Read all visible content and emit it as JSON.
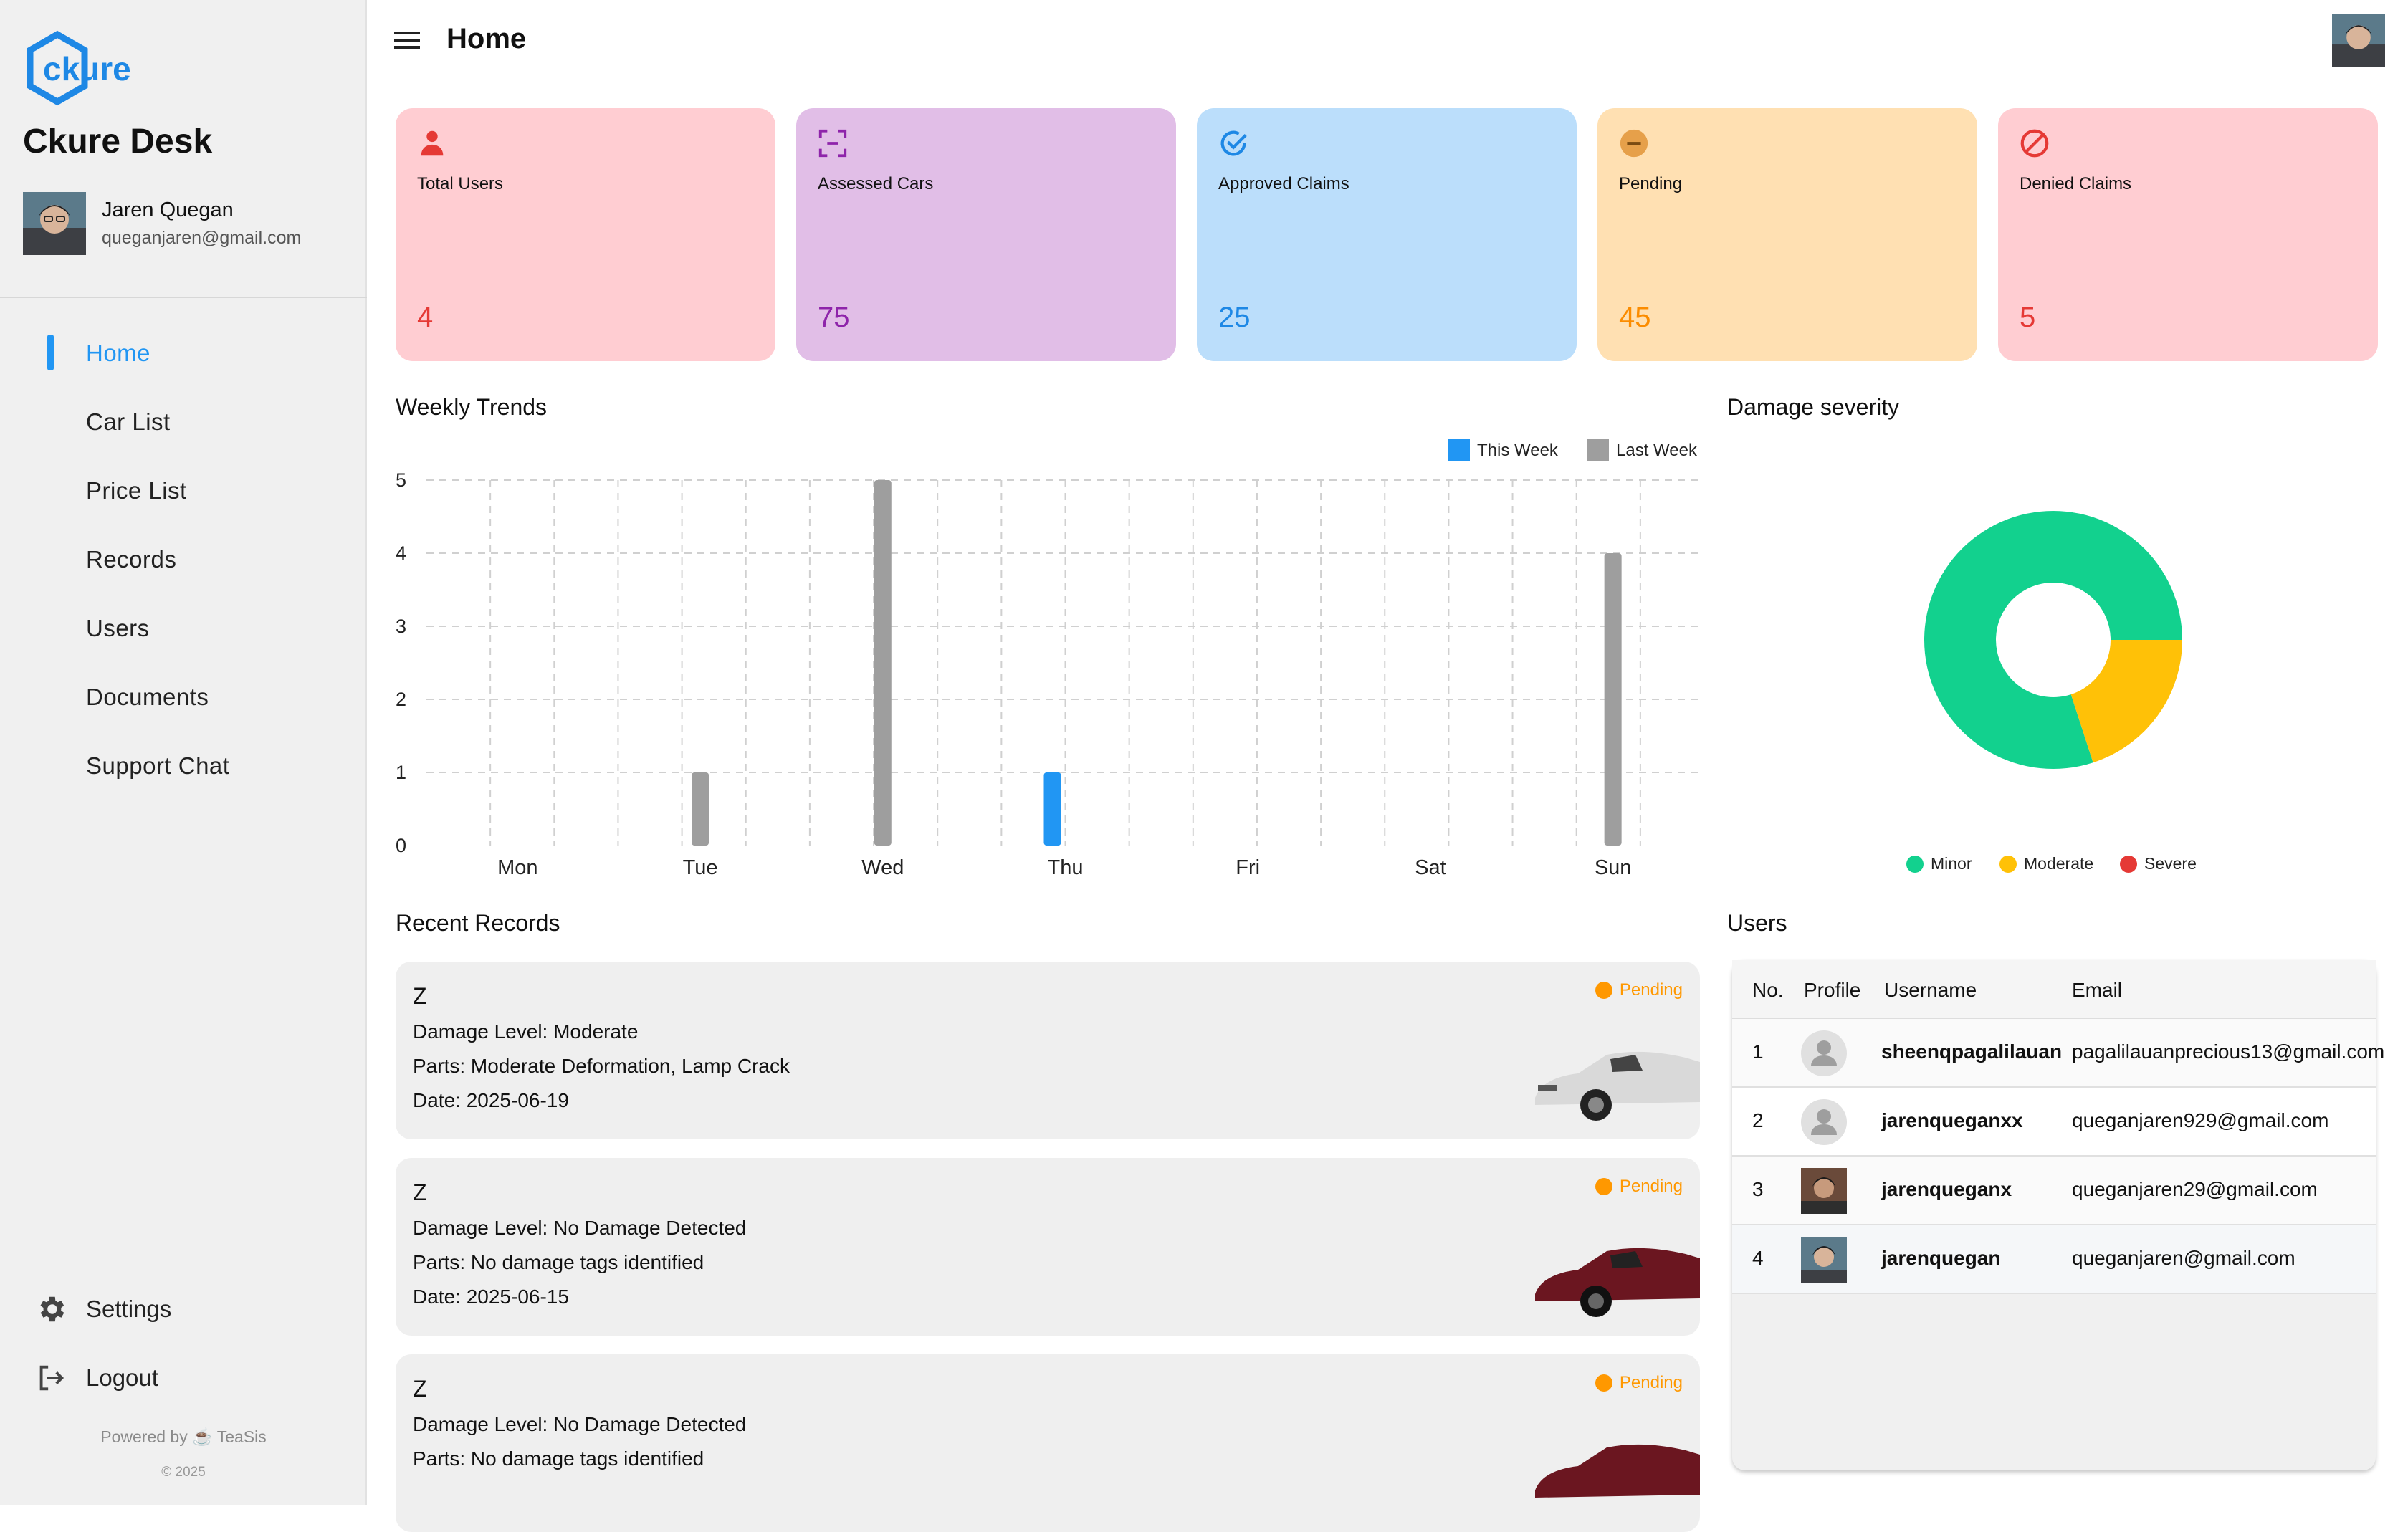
{
  "brand": {
    "name": "Ckure Desk",
    "logo_text": "ckure"
  },
  "profile": {
    "name": "Jaren Quegan",
    "email": "queganjaren@gmail.com"
  },
  "nav": [
    {
      "label": "Home",
      "active": true
    },
    {
      "label": "Car List"
    },
    {
      "label": "Price List"
    },
    {
      "label": "Records"
    },
    {
      "label": "Users"
    },
    {
      "label": "Documents"
    },
    {
      "label": "Support Chat"
    }
  ],
  "sidebar_bottom": {
    "settings_label": "Settings",
    "logout_label": "Logout",
    "powered_by": "Powered by ☕ TeaSis",
    "copyright": "© 2025"
  },
  "header": {
    "title": "Home",
    "menu_icon": "hamburger-icon"
  },
  "stats": [
    {
      "title": "Total Users",
      "value": "4",
      "icon": "person-icon",
      "bg": "#ffcdd2",
      "color": "#e53935"
    },
    {
      "title": "Assessed Cars",
      "value": "75",
      "icon": "scan-icon",
      "bg": "#e1bee7",
      "color": "#8e24aa"
    },
    {
      "title": "Approved Claims",
      "value": "25",
      "icon": "check-circle-icon",
      "bg": "#bbdefb",
      "color": "#1e88e5"
    },
    {
      "title": "Pending",
      "value": "45",
      "icon": "minus-circle-icon",
      "bg": "#ffe0b2",
      "color": "#fb8c00"
    },
    {
      "title": "Denied Claims",
      "value": "5",
      "icon": "block-icon",
      "bg": "#ffcdd2",
      "color": "#e53935"
    }
  ],
  "weekly": {
    "title": "Weekly Trends"
  },
  "chart_data": [
    {
      "type": "bar",
      "title": "Weekly Trends",
      "categories": [
        "Mon",
        "Tue",
        "Wed",
        "Thu",
        "Fri",
        "Sat",
        "Sun"
      ],
      "series": [
        {
          "name": "This Week",
          "color": "#2196f3",
          "values": [
            0,
            0,
            0,
            1,
            0,
            0,
            0
          ]
        },
        {
          "name": "Last Week",
          "color": "#9e9e9e",
          "values": [
            0,
            1,
            5,
            0,
            0,
            0,
            4
          ]
        }
      ],
      "ylim": [
        0,
        5
      ],
      "yticks": [
        "0",
        "1",
        "2",
        "3",
        "4",
        "5"
      ],
      "grid": true,
      "legend": "top-right"
    },
    {
      "type": "pie",
      "title": "Damage severity",
      "categories": [
        "Minor",
        "Moderate",
        "Severe"
      ],
      "values": [
        80,
        20,
        0
      ],
      "colors": [
        "#12d18e",
        "#ffc107",
        "#e53935"
      ],
      "legend": "bottom"
    }
  ],
  "damage": {
    "title": "Damage severity"
  },
  "recent": {
    "title": "Recent Records",
    "items": [
      {
        "name": "Z",
        "level": "Damage Level: Moderate",
        "parts": "Parts: Moderate Deformation, Lamp Crack",
        "date": "Date: 2025-06-19",
        "status": "Pending",
        "car_color": "#d9d9d9"
      },
      {
        "name": "Z",
        "level": "Damage Level: No Damage Detected",
        "parts": "Parts: No damage tags identified",
        "date": "Date: 2025-06-15",
        "status": "Pending",
        "car_color": "#6b1620"
      },
      {
        "name": "Z",
        "level": "Damage Level: No Damage Detected",
        "parts": "Parts: No damage tags identified",
        "date": "",
        "status": "Pending",
        "car_color": "#6b1620"
      }
    ]
  },
  "users": {
    "title": "Users",
    "columns": [
      "No.",
      "Profile",
      "Username",
      "Email"
    ],
    "rows": [
      {
        "no": "1",
        "username": "sheenqpagalilauan",
        "email": "pagalilauanprecious13@gmail.com",
        "avatar": "default"
      },
      {
        "no": "2",
        "username": "jarenqueganxx",
        "email": "queganjaren929@gmail.com",
        "avatar": "default"
      },
      {
        "no": "3",
        "username": "jarenqueganx",
        "email": "queganjaren29@gmail.com",
        "avatar": "photo"
      },
      {
        "no": "4",
        "username": "jarenquegan",
        "email": "queganjaren@gmail.com",
        "avatar": "photo"
      }
    ]
  }
}
